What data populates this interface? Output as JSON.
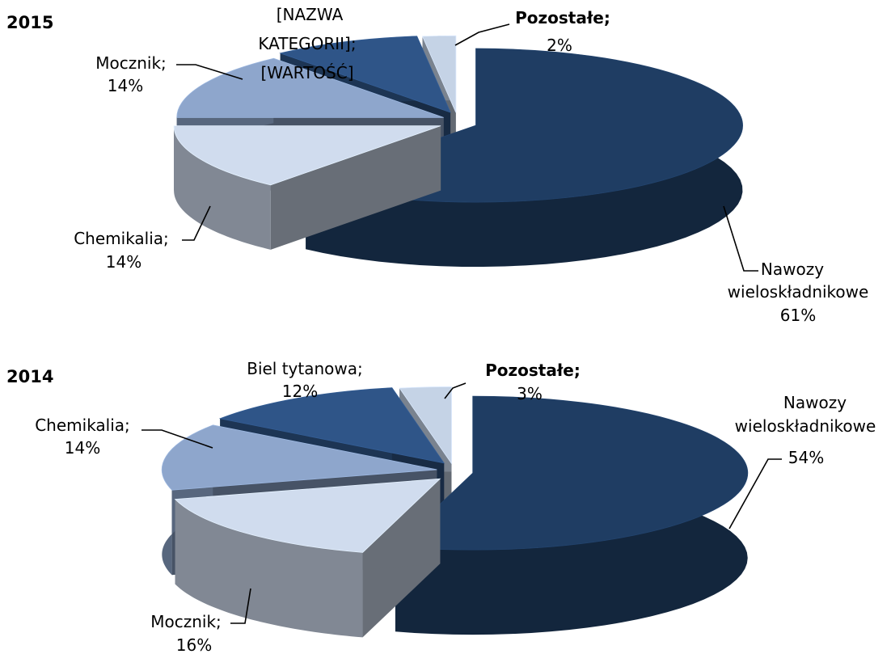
{
  "chart_data": [
    {
      "type": "pie",
      "title": "2015",
      "values_unit": "%",
      "slices": [
        {
          "label": "Nawozy wieloskładnikowe",
          "value": 61,
          "color": "#1f3d63"
        },
        {
          "label": "Chemikalia",
          "value": 14,
          "color": "#d0dcee"
        },
        {
          "label": "Mocznik",
          "value": 14,
          "color": "#8ea6cc"
        },
        {
          "label": "[NAZWA KATEGORII]",
          "value": "[WARTOŚĆ]",
          "color": "#2f5588"
        },
        {
          "label": "Pozostałe",
          "value": 2,
          "color": "#c5d3e6"
        }
      ]
    },
    {
      "type": "pie",
      "title": "2014",
      "values_unit": "%",
      "slices": [
        {
          "label": "Nawozy wieloskładnikowe",
          "value": 54,
          "color": "#1f3d63"
        },
        {
          "label": "Mocznik",
          "value": 16,
          "color": "#d0dcee"
        },
        {
          "label": "Chemikalia",
          "value": 14,
          "color": "#8ea6cc"
        },
        {
          "label": "Biel tytanowa",
          "value": 12,
          "color": "#2f5588"
        },
        {
          "label": "Pozostałe",
          "value": 3,
          "color": "#c5d3e6"
        }
      ]
    }
  ],
  "labels": {
    "p2015": {
      "nawozy_l1": "Nawozy",
      "nawozy_l2": "wieloskładnikowe",
      "nawozy_l3": "61%",
      "chem_l1": "Chemikalia;",
      "chem_l2": "14%",
      "mocz_l1": "Mocznik;",
      "mocz_l2": "14%",
      "cat_l1": "[NAZWA",
      "cat_l2": "KATEGORII];",
      "cat_l3": "[WARTOŚĆ]",
      "poz_l1": "Pozostałe;",
      "poz_l2": "2%"
    },
    "p2014": {
      "nawozy_l1": "Nawozy",
      "nawozy_l2": "wieloskładnikowe",
      "nawozy_l3": "54%",
      "chem_l1": "Chemikalia;",
      "chem_l2": "14%",
      "mocz_l1": "Mocznik;",
      "mocz_l2": "16%",
      "biel_l1": "Biel tytanowa;",
      "biel_l2": "12%",
      "poz_l1": "Pozostałe;",
      "poz_l2": "3%"
    }
  }
}
